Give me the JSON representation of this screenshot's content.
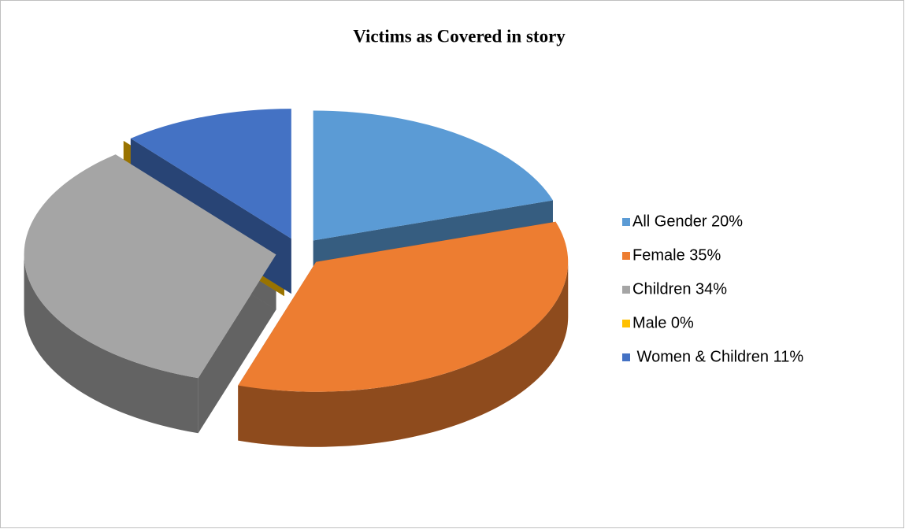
{
  "chart_data": {
    "type": "pie",
    "title": "Victims as Covered in story",
    "categories": [
      "All Gender 20%",
      "Female 35%",
      "Children 34%",
      "Male 0%",
      " Women & Children 11%"
    ],
    "values": [
      20,
      35,
      34,
      0,
      11
    ],
    "colors": [
      "#5b9bd5",
      "#ed7d31",
      "#a5a5a5",
      "#ffc000",
      "#4472c4"
    ],
    "legend": "right"
  }
}
